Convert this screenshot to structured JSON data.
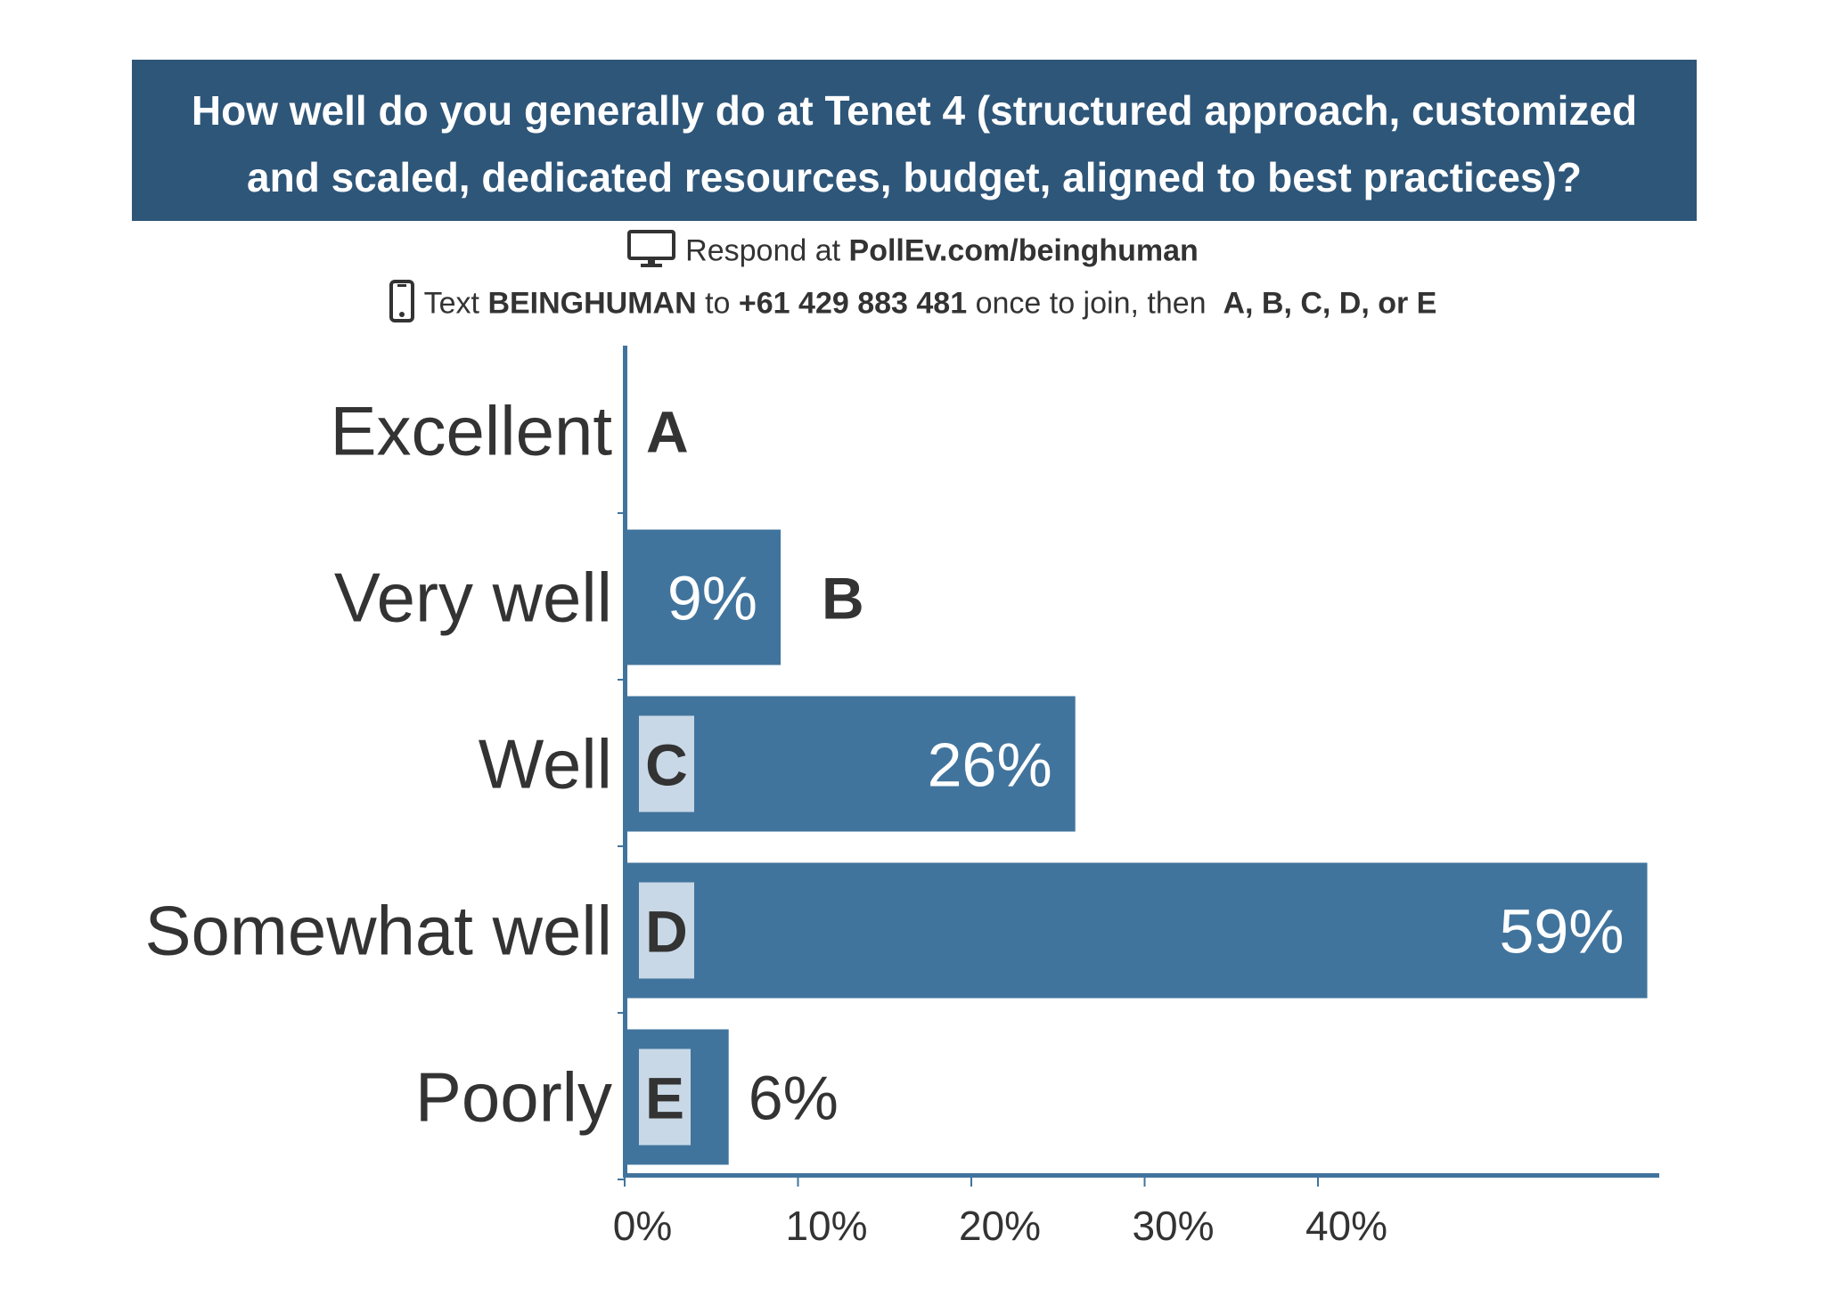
{
  "title": {
    "line1": "How well do you generally do at Tenet 4 (structured approach, customized",
    "line2": "and scaled, dedicated resources, budget, aligned to best practices)?"
  },
  "instructions": {
    "respond_prefix": "Respond at",
    "respond_url": "PollEv.com/beinghuman",
    "text_prefix": "Text",
    "text_keyword": "BEINGHUMAN",
    "text_to": "to",
    "text_number": "+61 429 883 481",
    "text_middle": "once to join, then",
    "text_options": "A, B, C, D, or E",
    "respond_icon": "monitor-icon",
    "text_icon": "phone-icon"
  },
  "colors": {
    "banner": "#2e5679",
    "bar": "#41749d",
    "axis": "#41749d",
    "letter_box": "#c9d8e6"
  },
  "chart_data": {
    "type": "bar",
    "orientation": "horizontal",
    "title": "How well do you generally do at Tenet 4 (structured approach, customized and scaled, dedicated resources, budget, aligned to best practices)?",
    "categories": [
      "Excellent",
      "Very well",
      "Well",
      "Somewhat well",
      "Poorly"
    ],
    "letters": [
      "A",
      "B",
      "C",
      "D",
      "E"
    ],
    "values": [
      0,
      9,
      26,
      59,
      6
    ],
    "value_labels": [
      "",
      "9%",
      "26%",
      "59%",
      "6%"
    ],
    "xticks": [
      0,
      10,
      20,
      30,
      40
    ],
    "xtick_labels": [
      "0%",
      "10%",
      "20%",
      "30%",
      "40%"
    ],
    "xlim": [
      0,
      60
    ],
    "xlabel": "",
    "ylabel": ""
  }
}
